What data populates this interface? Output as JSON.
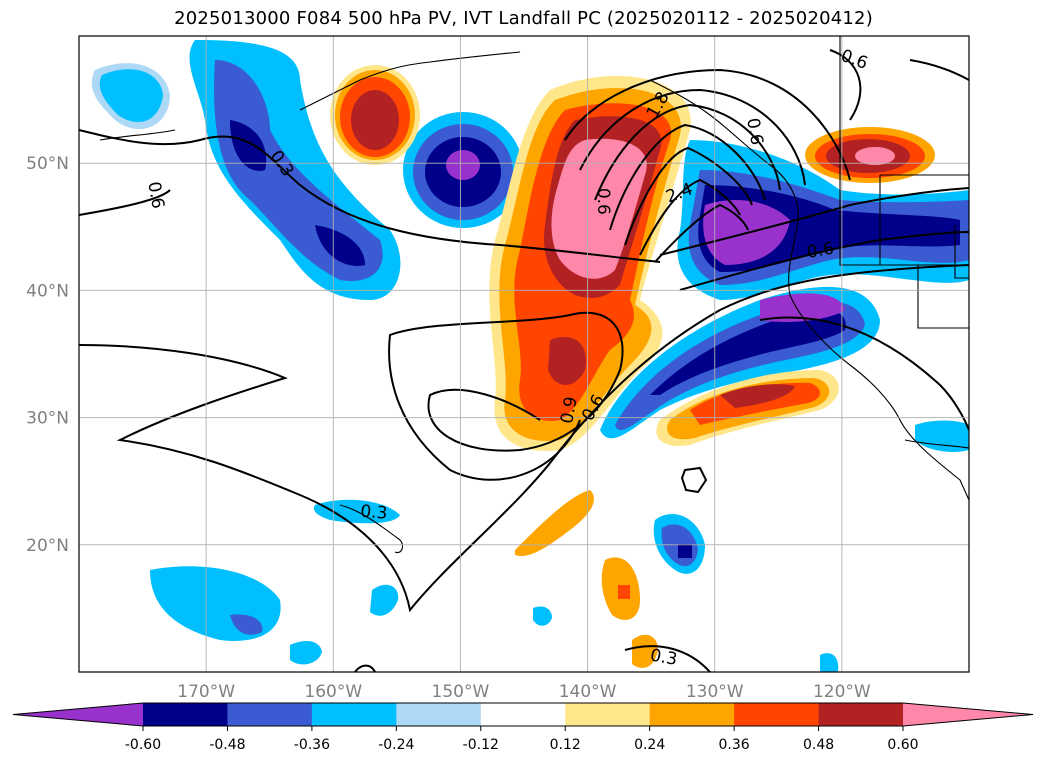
{
  "title": "2025013000 F084 500 hPa PV, IVT Landfall PC (2025020112 - 2025020412)",
  "map": {
    "lon_range": [
      -180,
      -110
    ],
    "lat_range": [
      10,
      60
    ],
    "lat_ticks": [
      {
        "value": 20,
        "label": "20°N"
      },
      {
        "value": 30,
        "label": "30°N"
      },
      {
        "value": 40,
        "label": "40°N"
      },
      {
        "value": 50,
        "label": "50°N"
      }
    ],
    "lon_ticks": [
      {
        "value": -170,
        "label": "170°W"
      },
      {
        "value": -160,
        "label": "160°W"
      },
      {
        "value": -150,
        "label": "150°W"
      },
      {
        "value": -140,
        "label": "140°W"
      },
      {
        "value": -130,
        "label": "130°W"
      },
      {
        "value": -120,
        "label": "120°W"
      }
    ],
    "grid": true,
    "contour_labels": [
      {
        "text": "0.6",
        "lon": -173.9,
        "lat": 47.5,
        "rot": 80
      },
      {
        "text": "0.3",
        "lon": -164.0,
        "lat": 50.0,
        "rot": 55
      },
      {
        "text": "1.8",
        "lon": -134.5,
        "lat": 54.6,
        "rot": -60
      },
      {
        "text": "0.6",
        "lon": -119.0,
        "lat": 58.2,
        "rot": 20
      },
      {
        "text": "0.6",
        "lon": -126.8,
        "lat": 52.5,
        "rot": 80
      },
      {
        "text": "2.4",
        "lon": -132.8,
        "lat": 47.7,
        "rot": -20
      },
      {
        "text": "0.6",
        "lon": -138.7,
        "lat": 47.0,
        "rot": 90
      },
      {
        "text": "0.6",
        "lon": -121.7,
        "lat": 43.2,
        "rot": -10
      },
      {
        "text": "0.9",
        "lon": -141.5,
        "lat": 30.6,
        "rot": -80
      },
      {
        "text": "0.6",
        "lon": -139.6,
        "lat": 30.8,
        "rot": -60
      },
      {
        "text": "0.3",
        "lon": -156.8,
        "lat": 22.6,
        "rot": 5
      },
      {
        "text": "0.3",
        "lon": -134.0,
        "lat": 11.2,
        "rot": 10
      }
    ]
  },
  "colorbar": {
    "levels": [
      "-0.60",
      "-0.48",
      "-0.36",
      "-0.24",
      "-0.12",
      "0.12",
      "0.24",
      "0.36",
      "0.48",
      "0.60"
    ],
    "colors": [
      "#9932cc",
      "#00008b",
      "#3a5bd1",
      "#00bfff",
      "#add8f6",
      "#ffffff",
      "#ffe68a",
      "#ffa500",
      "#ff4500",
      "#b22222",
      "#ff88aa"
    ]
  }
}
